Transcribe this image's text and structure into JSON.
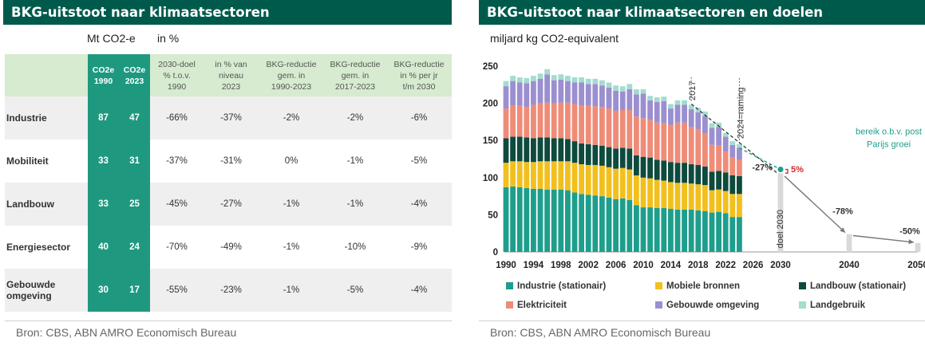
{
  "left_panel": {
    "title": "BKG-uitstoot naar klimaatsectoren",
    "unit_left": "Mt CO2-e",
    "unit_right": "in %",
    "source": "Bron: CBS, ABN AMRO Economisch Bureau",
    "table": {
      "headers": [
        "",
        "CO2e\n1990",
        "CO2e\n2023",
        "2030-doel\n% t.o.v.\n1990",
        "in % van\nniveau\n2023",
        "BKG-reductie\ngem. in\n1990-2023",
        "BKG-reductie\ngem. in\n2017-2023",
        "BKG-reductie\nin % per jr\nt/m 2030"
      ],
      "rows": [
        {
          "sector": "Industrie",
          "co2_1990": "87",
          "co2_2023": "47",
          "doel_2030": "-66%",
          "pct_2023": "-37%",
          "red_1990_2023": "-2%",
          "red_2017_2023": "-2%",
          "red_per_jr": "-6%"
        },
        {
          "sector": "Mobiliteit",
          "co2_1990": "33",
          "co2_2023": "31",
          "doel_2030": "-37%",
          "pct_2023": "-31%",
          "red_1990_2023": "0%",
          "red_2017_2023": "-1%",
          "red_per_jr": "-5%"
        },
        {
          "sector": "Landbouw",
          "co2_1990": "33",
          "co2_2023": "25",
          "doel_2030": "-45%",
          "pct_2023": "-27%",
          "red_1990_2023": "-1%",
          "red_2017_2023": "-1%",
          "red_per_jr": "-4%"
        },
        {
          "sector": "Energiesector",
          "co2_1990": "40",
          "co2_2023": "24",
          "doel_2030": "-70%",
          "pct_2023": "-49%",
          "red_1990_2023": "-1%",
          "red_2017_2023": "-10%",
          "red_per_jr": "-9%"
        },
        {
          "sector": "Gebouwde\nomgeving",
          "co2_1990": "30",
          "co2_2023": "17",
          "doel_2030": "-55%",
          "pct_2023": "-23%",
          "red_1990_2023": "-1%",
          "red_2017_2023": "-5%",
          "red_per_jr": "-4%"
        }
      ]
    },
    "colors": {
      "header_bg": "#d6ebcf",
      "emph": "#1e9980",
      "title_bg": "#005a4c"
    }
  },
  "right_panel": {
    "title": "BKG-uitstoot naar klimaatsectoren en doelen",
    "unit": "miljard kg CO2-equivalent",
    "source": "Bron: CBS, ABN AMRO Economisch Bureau",
    "annotations": {
      "y2017": "2017",
      "raming": "2024=raming",
      "doel2030": "doel 2030",
      "parijs": [
        "bereik o.b.v. post",
        "Parijs groei"
      ],
      "pct5": "5%",
      "m27": "-27%",
      "m78": "-78%",
      "m50": "-50%"
    }
  },
  "chart_data": {
    "type": "bar",
    "stacked": true,
    "years": [
      1990,
      1991,
      1992,
      1993,
      1994,
      1995,
      1996,
      1997,
      1998,
      1999,
      2000,
      2001,
      2002,
      2003,
      2004,
      2005,
      2006,
      2007,
      2008,
      2009,
      2010,
      2011,
      2012,
      2013,
      2014,
      2015,
      2016,
      2017,
      2018,
      2019,
      2020,
      2021,
      2022,
      2023,
      2024
    ],
    "series": [
      {
        "name": "Industrie (stationair)",
        "color": "#1e9e8c",
        "values": [
          87,
          88,
          87,
          86,
          85,
          85,
          84,
          84,
          84,
          83,
          80,
          78,
          77,
          76,
          75,
          73,
          71,
          72,
          70,
          63,
          60,
          60,
          59,
          59,
          58,
          57,
          57,
          57,
          56,
          55,
          53,
          54,
          52,
          47,
          47
        ]
      },
      {
        "name": "Mobiele bronnen",
        "color": "#f2c01e",
        "values": [
          33,
          34,
          35,
          35,
          36,
          37,
          38,
          38,
          38,
          39,
          40,
          40,
          40,
          41,
          41,
          41,
          41,
          41,
          41,
          40,
          40,
          39,
          38,
          37,
          36,
          36,
          36,
          35,
          35,
          35,
          30,
          30,
          30,
          31,
          31
        ]
      },
      {
        "name": "Landbouw (stationair)",
        "color": "#0e4a3e",
        "values": [
          33,
          33,
          33,
          33,
          32,
          32,
          32,
          31,
          31,
          30,
          29,
          28,
          28,
          27,
          27,
          27,
          27,
          27,
          28,
          27,
          28,
          28,
          27,
          27,
          27,
          27,
          27,
          26,
          26,
          25,
          25,
          25,
          25,
          25,
          24
        ]
      },
      {
        "name": "Elektriciteit",
        "color": "#ee8c78",
        "values": [
          40,
          42,
          42,
          41,
          45,
          46,
          47,
          47,
          48,
          49,
          50,
          51,
          52,
          52,
          52,
          52,
          51,
          51,
          52,
          52,
          52,
          51,
          50,
          50,
          50,
          54,
          54,
          50,
          48,
          44,
          36,
          34,
          28,
          24,
          22
        ]
      },
      {
        "name": "Gebouwde omgeving",
        "color": "#9b8fd0",
        "values": [
          30,
          33,
          31,
          32,
          32,
          33,
          38,
          31,
          31,
          29,
          29,
          31,
          29,
          30,
          29,
          28,
          27,
          25,
          28,
          30,
          33,
          26,
          28,
          30,
          22,
          24,
          24,
          24,
          23,
          24,
          23,
          25,
          20,
          17,
          16
        ]
      },
      {
        "name": "Landgebruik",
        "color": "#a3dcd0",
        "values": [
          7,
          7,
          7,
          7,
          7,
          7,
          7,
          7,
          7,
          7,
          7,
          7,
          7,
          7,
          7,
          7,
          7,
          7,
          7,
          7,
          6,
          6,
          6,
          6,
          6,
          6,
          6,
          6,
          6,
          6,
          6,
          6,
          5,
          5,
          5
        ]
      }
    ],
    "targets": [
      {
        "year": 2030,
        "value": 106,
        "color": "#d9d9d9"
      },
      {
        "year": 2040,
        "value": 24,
        "color": "#d9d9d9"
      },
      {
        "year": 2050,
        "value": 12,
        "color": "#d9d9d9"
      }
    ],
    "paris_point": {
      "year": 2030,
      "value": 111
    },
    "trend_from": {
      "year": 2017,
      "value": 199
    },
    "x_range": [
      1990,
      2050
    ],
    "x_ticks": [
      1990,
      1994,
      1998,
      2002,
      2006,
      2010,
      2014,
      2018,
      2022,
      2026,
      2030,
      2040,
      2050
    ],
    "y_range": [
      0,
      250
    ],
    "y_ticks": [
      0,
      50,
      100,
      150,
      200,
      250
    ],
    "legend": [
      "Industrie (stationair)",
      "Mobiele bronnen",
      "Landbouw (stationair)",
      "Elektriciteit",
      "Gebouwde omgeving",
      "Landgebruik"
    ],
    "legend_position": "bottom"
  }
}
